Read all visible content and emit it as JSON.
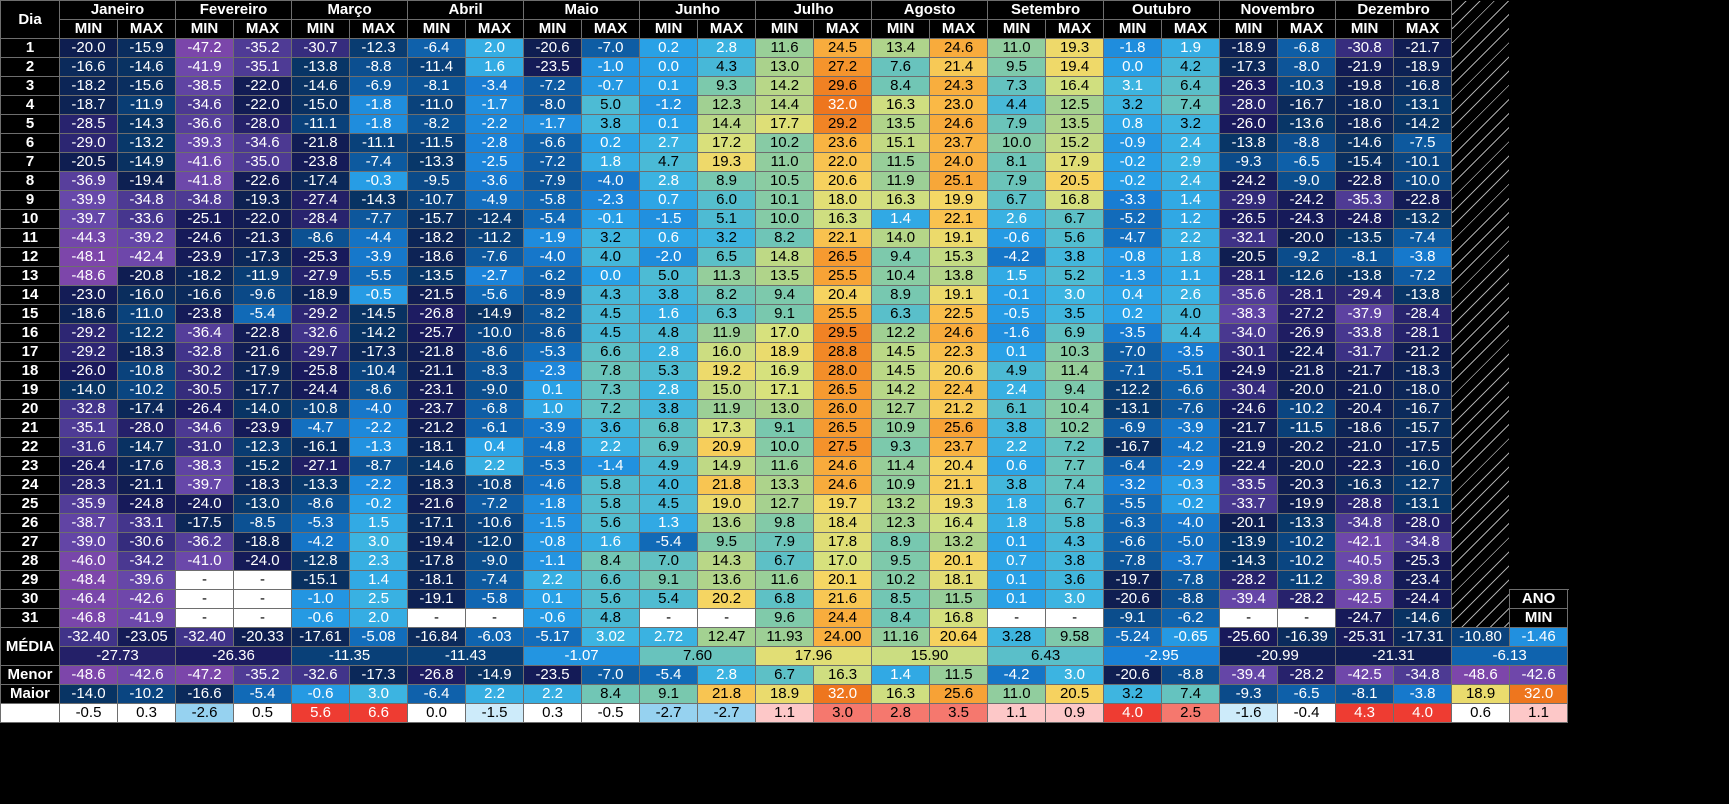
{
  "header": {
    "dia_label": "Dia",
    "min_label": "MIN",
    "max_label": "MAX",
    "ano_label": "ANO",
    "months": [
      "Janeiro",
      "Fevereiro",
      "Março",
      "Abril",
      "Maio",
      "Junho",
      "Julho",
      "Agosto",
      "Setembro",
      "Outubro",
      "Novembro",
      "Dezembro"
    ]
  },
  "days": [
    {
      "day": "1",
      "vals": [
        "-20.0",
        "-15.9",
        "-47.2",
        "-35.2",
        "-30.7",
        "-12.3",
        "-6.4",
        "2.0",
        "-20.6",
        "-7.0",
        "0.2",
        "2.8",
        "11.6",
        "24.5",
        "13.4",
        "24.6",
        "11.0",
        "19.3",
        "-1.8",
        "1.9",
        "-18.9",
        "-6.8",
        "-30.8",
        "-21.7"
      ]
    },
    {
      "day": "2",
      "vals": [
        "-16.6",
        "-14.6",
        "-41.9",
        "-35.1",
        "-13.8",
        "-8.8",
        "-11.4",
        "1.6",
        "-23.5",
        "-1.0",
        "0.0",
        "4.3",
        "13.0",
        "27.2",
        "7.6",
        "21.4",
        "9.5",
        "19.4",
        "0.0",
        "4.2",
        "-17.3",
        "-8.0",
        "-21.9",
        "-18.9"
      ]
    },
    {
      "day": "3",
      "vals": [
        "-18.2",
        "-15.6",
        "-38.5",
        "-22.0",
        "-14.6",
        "-6.9",
        "-8.1",
        "-3.4",
        "-7.2",
        "-0.7",
        "0.1",
        "9.3",
        "14.2",
        "29.6",
        "8.4",
        "24.3",
        "7.3",
        "16.4",
        "3.1",
        "6.4",
        "-26.3",
        "-10.3",
        "-19.8",
        "-16.8"
      ]
    },
    {
      "day": "4",
      "vals": [
        "-18.7",
        "-11.9",
        "-34.6",
        "-22.0",
        "-15.0",
        "-1.8",
        "-11.0",
        "-1.7",
        "-8.0",
        "5.0",
        "-1.2",
        "12.3",
        "14.4",
        "32.0",
        "16.3",
        "23.0",
        "4.4",
        "12.5",
        "3.2",
        "7.4",
        "-28.0",
        "-16.7",
        "-18.0",
        "-13.1"
      ]
    },
    {
      "day": "5",
      "vals": [
        "-28.5",
        "-14.3",
        "-36.6",
        "-28.0",
        "-11.1",
        "-1.8",
        "-8.2",
        "-2.2",
        "-1.7",
        "3.8",
        "0.1",
        "14.4",
        "17.7",
        "29.2",
        "13.5",
        "24.6",
        "7.9",
        "13.5",
        "0.8",
        "3.2",
        "-26.0",
        "-13.6",
        "-18.6",
        "-14.2"
      ]
    },
    {
      "day": "6",
      "vals": [
        "-29.0",
        "-13.2",
        "-39.3",
        "-34.6",
        "-21.8",
        "-11.1",
        "-11.5",
        "-2.8",
        "-6.6",
        "0.2",
        "2.7",
        "17.2",
        "10.2",
        "23.6",
        "15.1",
        "23.7",
        "10.0",
        "15.2",
        "-0.9",
        "2.4",
        "-13.8",
        "-8.8",
        "-14.6",
        "-7.5"
      ]
    },
    {
      "day": "7",
      "vals": [
        "-20.5",
        "-14.9",
        "-41.6",
        "-35.0",
        "-23.8",
        "-7.4",
        "-13.3",
        "-2.5",
        "-7.2",
        "1.8",
        "4.7",
        "19.3",
        "11.0",
        "22.0",
        "11.5",
        "24.0",
        "8.1",
        "17.9",
        "-0.2",
        "2.9",
        "-9.3",
        "-6.5",
        "-15.4",
        "-10.1"
      ]
    },
    {
      "day": "8",
      "vals": [
        "-36.9",
        "-19.4",
        "-41.8",
        "-22.6",
        "-17.4",
        "-0.3",
        "-9.5",
        "-3.6",
        "-7.9",
        "-4.0",
        "2.8",
        "8.9",
        "10.5",
        "20.6",
        "11.9",
        "25.1",
        "7.9",
        "20.5",
        "-0.2",
        "2.4",
        "-24.2",
        "-9.0",
        "-22.8",
        "-10.0"
      ]
    },
    {
      "day": "9",
      "vals": [
        "-39.9",
        "-34.8",
        "-34.8",
        "-19.3",
        "-27.4",
        "-14.3",
        "-10.7",
        "-4.9",
        "-5.8",
        "-2.3",
        "0.7",
        "6.0",
        "10.1",
        "18.0",
        "16.3",
        "19.9",
        "6.7",
        "16.8",
        "-3.3",
        "1.4",
        "-29.9",
        "-24.2",
        "-35.3",
        "-22.8"
      ]
    },
    {
      "day": "10",
      "vals": [
        "-39.7",
        "-33.6",
        "-25.1",
        "-22.0",
        "-28.4",
        "-7.7",
        "-15.7",
        "-12.4",
        "-5.4",
        "-0.1",
        "-1.5",
        "5.1",
        "10.0",
        "16.3",
        "1.4",
        "22.1",
        "2.6",
        "6.7",
        "-5.2",
        "1.2",
        "-26.5",
        "-24.3",
        "-24.8",
        "-13.2"
      ]
    },
    {
      "day": "11",
      "vals": [
        "-44.3",
        "-39.2",
        "-24.6",
        "-21.3",
        "-8.6",
        "-4.4",
        "-18.2",
        "-11.2",
        "-1.9",
        "3.2",
        "0.6",
        "3.2",
        "8.2",
        "22.1",
        "14.0",
        "19.1",
        "-0.6",
        "5.6",
        "-4.7",
        "2.2",
        "-32.1",
        "-20.0",
        "-13.5",
        "-7.4"
      ]
    },
    {
      "day": "12",
      "vals": [
        "-48.1",
        "-42.4",
        "-23.9",
        "-17.3",
        "-25.3",
        "-3.9",
        "-18.6",
        "-7.6",
        "-4.0",
        "4.0",
        "-2.0",
        "6.5",
        "14.8",
        "26.5",
        "9.4",
        "15.3",
        "-4.2",
        "3.8",
        "-0.8",
        "1.8",
        "-20.5",
        "-9.2",
        "-8.1",
        "-3.8"
      ]
    },
    {
      "day": "13",
      "vals": [
        "-48.6",
        "-20.8",
        "-18.2",
        "-11.9",
        "-27.9",
        "-5.5",
        "-13.5",
        "-2.7",
        "-6.2",
        "0.0",
        "5.0",
        "11.3",
        "13.5",
        "25.5",
        "10.4",
        "13.8",
        "1.5",
        "5.2",
        "-1.3",
        "1.1",
        "-28.1",
        "-12.6",
        "-13.8",
        "-7.2"
      ]
    },
    {
      "day": "14",
      "vals": [
        "-23.0",
        "-16.0",
        "-16.6",
        "-9.6",
        "-18.9",
        "-0.5",
        "-21.5",
        "-5.6",
        "-8.9",
        "4.3",
        "3.8",
        "8.2",
        "9.4",
        "20.4",
        "8.9",
        "19.1",
        "-0.1",
        "3.0",
        "0.4",
        "2.6",
        "-35.6",
        "-28.1",
        "-29.4",
        "-13.8"
      ]
    },
    {
      "day": "15",
      "vals": [
        "-18.6",
        "-11.0",
        "-23.8",
        "-5.4",
        "-29.2",
        "-14.5",
        "-26.8",
        "-14.9",
        "-8.2",
        "4.5",
        "1.6",
        "6.3",
        "9.1",
        "25.5",
        "6.3",
        "22.5",
        "-0.5",
        "3.5",
        "0.2",
        "4.0",
        "-38.3",
        "-27.2",
        "-37.9",
        "-28.4"
      ]
    },
    {
      "day": "16",
      "vals": [
        "-29.2",
        "-12.2",
        "-36.4",
        "-22.8",
        "-32.6",
        "-14.2",
        "-25.7",
        "-10.0",
        "-8.6",
        "4.5",
        "4.8",
        "11.9",
        "17.0",
        "29.5",
        "12.2",
        "24.6",
        "-1.6",
        "6.9",
        "-3.5",
        "4.4",
        "-34.0",
        "-26.9",
        "-33.8",
        "-28.1"
      ]
    },
    {
      "day": "17",
      "vals": [
        "-29.2",
        "-18.3",
        "-32.8",
        "-21.6",
        "-29.7",
        "-17.3",
        "-21.8",
        "-8.6",
        "-5.3",
        "6.6",
        "2.8",
        "16.0",
        "18.9",
        "28.8",
        "14.5",
        "22.3",
        "0.1",
        "10.3",
        "-7.0",
        "-3.5",
        "-30.1",
        "-22.4",
        "-31.7",
        "-21.2"
      ]
    },
    {
      "day": "18",
      "vals": [
        "-26.0",
        "-10.8",
        "-30.2",
        "-17.9",
        "-25.8",
        "-10.4",
        "-21.1",
        "-8.3",
        "-2.3",
        "7.8",
        "5.3",
        "19.2",
        "16.9",
        "28.0",
        "14.5",
        "20.6",
        "4.9",
        "11.4",
        "-7.1",
        "-5.1",
        "-24.9",
        "-21.8",
        "-21.7",
        "-18.3"
      ]
    },
    {
      "day": "19",
      "vals": [
        "-14.0",
        "-10.2",
        "-30.5",
        "-17.7",
        "-24.4",
        "-8.6",
        "-23.1",
        "-9.0",
        "0.1",
        "7.3",
        "2.8",
        "15.0",
        "17.1",
        "26.5",
        "14.2",
        "22.4",
        "2.4",
        "9.4",
        "-12.2",
        "-6.6",
        "-30.4",
        "-20.0",
        "-21.0",
        "-18.0"
      ]
    },
    {
      "day": "20",
      "vals": [
        "-32.8",
        "-17.4",
        "-26.4",
        "-14.0",
        "-10.8",
        "-4.0",
        "-23.7",
        "-6.8",
        "1.0",
        "7.2",
        "3.8",
        "11.9",
        "13.0",
        "26.0",
        "12.7",
        "21.2",
        "6.1",
        "10.4",
        "-13.1",
        "-7.6",
        "-24.6",
        "-10.2",
        "-20.4",
        "-16.7"
      ]
    },
    {
      "day": "21",
      "vals": [
        "-35.1",
        "-28.0",
        "-34.6",
        "-23.9",
        "-4.7",
        "-2.2",
        "-21.2",
        "-6.1",
        "-3.9",
        "3.6",
        "6.8",
        "17.3",
        "9.1",
        "26.5",
        "10.9",
        "25.6",
        "3.8",
        "10.2",
        "-6.9",
        "-3.9",
        "-21.7",
        "-11.5",
        "-18.6",
        "-15.7"
      ]
    },
    {
      "day": "22",
      "vals": [
        "-31.6",
        "-14.7",
        "-31.0",
        "-12.3",
        "-16.1",
        "-1.3",
        "-18.1",
        "0.4",
        "-4.8",
        "2.2",
        "6.9",
        "20.9",
        "10.0",
        "27.5",
        "9.3",
        "23.7",
        "2.2",
        "7.2",
        "-16.7",
        "-4.2",
        "-21.9",
        "-20.2",
        "-21.0",
        "-17.5"
      ]
    },
    {
      "day": "23",
      "vals": [
        "-26.4",
        "-17.6",
        "-38.3",
        "-15.2",
        "-27.1",
        "-8.7",
        "-14.6",
        "2.2",
        "-5.3",
        "-1.4",
        "4.9",
        "14.9",
        "11.6",
        "24.6",
        "11.4",
        "20.4",
        "0.6",
        "7.7",
        "-6.4",
        "-2.9",
        "-22.4",
        "-20.0",
        "-22.3",
        "-16.0"
      ]
    },
    {
      "day": "24",
      "vals": [
        "-28.3",
        "-21.1",
        "-39.7",
        "-18.3",
        "-13.3",
        "-2.2",
        "-18.3",
        "-10.8",
        "-4.6",
        "5.8",
        "4.0",
        "21.8",
        "13.3",
        "24.6",
        "10.9",
        "21.1",
        "3.8",
        "7.4",
        "-3.2",
        "-0.3",
        "-33.5",
        "-20.3",
        "-16.3",
        "-12.7"
      ]
    },
    {
      "day": "25",
      "vals": [
        "-35.9",
        "-24.8",
        "-24.0",
        "-13.0",
        "-8.6",
        "-0.2",
        "-21.6",
        "-7.2",
        "-1.8",
        "5.8",
        "4.5",
        "19.0",
        "12.7",
        "19.7",
        "13.2",
        "19.3",
        "1.8",
        "6.7",
        "-5.5",
        "-0.2",
        "-33.7",
        "-19.9",
        "-28.8",
        "-13.1"
      ]
    },
    {
      "day": "26",
      "vals": [
        "-38.7",
        "-33.1",
        "-17.5",
        "-8.5",
        "-5.3",
        "1.5",
        "-17.1",
        "-10.6",
        "-1.5",
        "5.6",
        "1.3",
        "13.6",
        "9.8",
        "18.4",
        "12.3",
        "16.4",
        "1.8",
        "5.8",
        "-6.3",
        "-4.0",
        "-20.1",
        "-13.3",
        "-34.8",
        "-28.0"
      ]
    },
    {
      "day": "27",
      "vals": [
        "-39.0",
        "-30.6",
        "-36.2",
        "-18.8",
        "-4.2",
        "3.0",
        "-19.4",
        "-12.0",
        "-0.8",
        "1.6",
        "-5.4",
        "9.5",
        "7.9",
        "17.8",
        "8.9",
        "13.2",
        "0.1",
        "4.3",
        "-6.6",
        "-5.0",
        "-13.9",
        "-10.2",
        "-42.1",
        "-34.8"
      ]
    },
    {
      "day": "28",
      "vals": [
        "-46.0",
        "-34.2",
        "-41.0",
        "-24.0",
        "-12.8",
        "2.3",
        "-17.8",
        "-9.0",
        "-1.1",
        "8.4",
        "7.0",
        "14.3",
        "6.7",
        "17.0",
        "9.5",
        "20.1",
        "0.7",
        "3.8",
        "-7.8",
        "-3.7",
        "-14.3",
        "-10.2",
        "-40.5",
        "-25.3"
      ]
    },
    {
      "day": "29",
      "vals": [
        "-48.4",
        "-39.6",
        "-",
        "-",
        "-15.1",
        "1.4",
        "-18.1",
        "-7.4",
        "2.2",
        "6.6",
        "9.1",
        "13.6",
        "11.6",
        "20.1",
        "10.2",
        "18.1",
        "0.1",
        "3.6",
        "-19.7",
        "-7.8",
        "-28.2",
        "-11.2",
        "-39.8",
        "-23.4"
      ]
    },
    {
      "day": "30",
      "vals": [
        "-46.4",
        "-42.6",
        "-",
        "-",
        "-1.0",
        "2.5",
        "-19.1",
        "-5.8",
        "0.1",
        "5.6",
        "5.4",
        "20.2",
        "6.8",
        "21.6",
        "8.5",
        "11.5",
        "0.1",
        "3.0",
        "-20.6",
        "-8.8",
        "-39.4",
        "-28.2",
        "-42.5",
        "-24.4"
      ]
    },
    {
      "day": "31",
      "vals": [
        "-46.8",
        "-41.9",
        "-",
        "-",
        "-0.6",
        "2.0",
        "-",
        "-",
        "-0.6",
        "4.8",
        "-",
        "-",
        "9.6",
        "24.4",
        "8.4",
        "16.8",
        "-",
        "-",
        "-9.1",
        "-6.2",
        "-",
        "-",
        "-24.7",
        "-14.6"
      ]
    }
  ],
  "media": {
    "label": "MÉDIA",
    "vals": [
      "-32.40",
      "-23.05",
      "-32.40",
      "-20.33",
      "-17.61",
      "-5.08",
      "-16.84",
      "-6.03",
      "-5.17",
      "3.02",
      "2.72",
      "12.47",
      "11.93",
      "24.00",
      "11.16",
      "20.64",
      "3.28",
      "9.58",
      "-5.24",
      "-0.65",
      "-25.60",
      "-16.39",
      "-25.31",
      "-17.31"
    ],
    "ano": [
      "-10.80",
      "-1.46"
    ],
    "avg": [
      "-27.73",
      "-26.36",
      "-11.35",
      "-11.43",
      "-1.07",
      "7.60",
      "17.96",
      "15.90",
      "6.43",
      "-2.95",
      "-20.99",
      "-21.31"
    ],
    "ano_avg": "-6.13"
  },
  "menor": {
    "label": "Menor",
    "vals": [
      "-48.6",
      "-42.6",
      "-47.2",
      "-35.2",
      "-32.6",
      "-17.3",
      "-26.8",
      "-14.9",
      "-23.5",
      "-7.0",
      "-5.4",
      "2.8",
      "6.7",
      "16.3",
      "1.4",
      "11.5",
      "-4.2",
      "3.0",
      "-20.6",
      "-8.8",
      "-39.4",
      "-28.2",
      "-42.5",
      "-34.8"
    ],
    "ano": [
      "-48.6",
      "-42.6"
    ]
  },
  "maior": {
    "label": "Maior",
    "vals": [
      "-14.0",
      "-10.2",
      "-16.6",
      "-5.4",
      "-0.6",
      "3.0",
      "-6.4",
      "2.2",
      "2.2",
      "8.4",
      "9.1",
      "21.8",
      "18.9",
      "32.0",
      "16.3",
      "25.6",
      "11.0",
      "20.5",
      "3.2",
      "7.4",
      "-9.3",
      "-6.5",
      "-8.1",
      "-3.8"
    ],
    "ano": [
      "18.9",
      "32.0"
    ]
  },
  "anomaly": {
    "label": "",
    "vals": [
      "-0.5",
      "0.3",
      "-2.6",
      "0.5",
      "5.6",
      "6.6",
      "0.0",
      "-1.5",
      "0.3",
      "-0.5",
      "-2.7",
      "-2.7",
      "1.1",
      "3.0",
      "2.8",
      "3.5",
      "1.1",
      "0.9",
      "4.0",
      "2.5",
      "-1.6",
      "-0.4",
      "4.3",
      "4.0"
    ],
    "ano": [
      "0.6",
      "1.1"
    ]
  }
}
